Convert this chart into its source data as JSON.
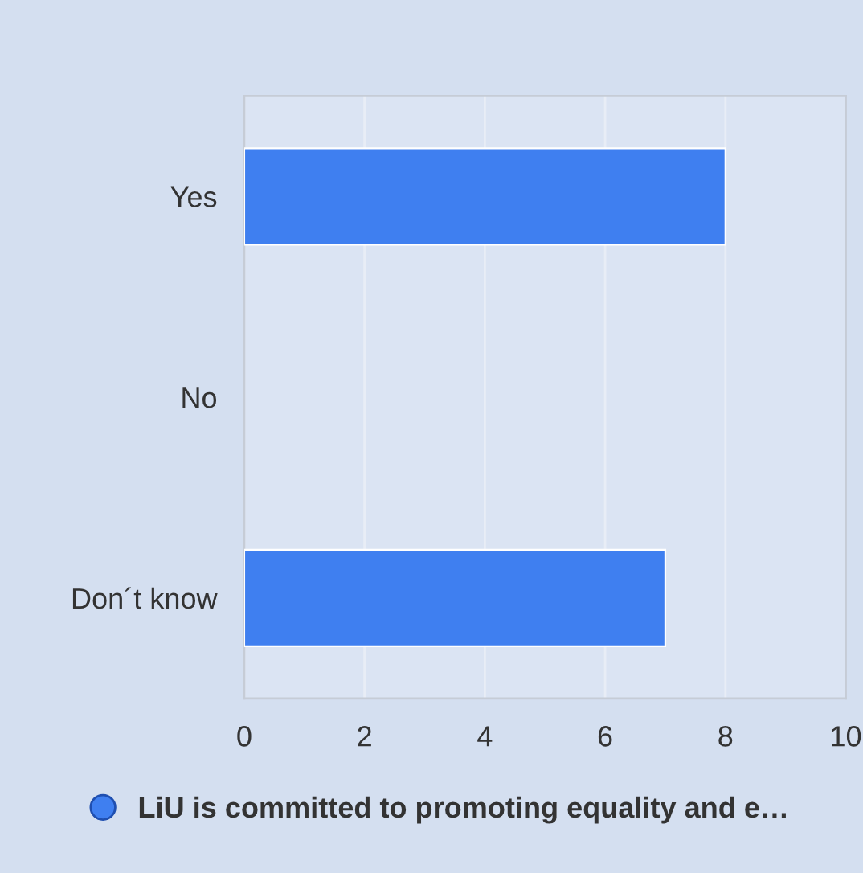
{
  "chart_data": {
    "type": "bar",
    "orientation": "horizontal",
    "categories": [
      "Yes",
      "No",
      "Don´t know"
    ],
    "series": [
      {
        "name": "LiU is committed to promoting equality and e…",
        "color": "#3f7ff0",
        "values": [
          8,
          0,
          7
        ]
      }
    ],
    "xlim": [
      0,
      10
    ],
    "xticks": [
      0,
      2,
      4,
      6,
      8,
      10
    ],
    "grid": "x",
    "legend": "bottom"
  }
}
